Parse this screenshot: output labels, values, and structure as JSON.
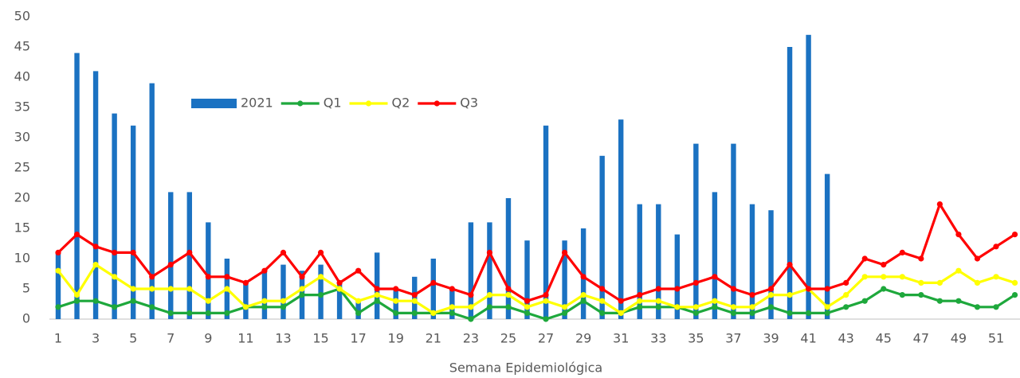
{
  "chart_data": {
    "type": "combo",
    "x_label": "Semana Epidemiológica",
    "categories": [
      1,
      null,
      3,
      null,
      5,
      null,
      7,
      null,
      9,
      null,
      11,
      null,
      13,
      null,
      15,
      null,
      17,
      null,
      19,
      null,
      21,
      null,
      23,
      null,
      25,
      null,
      27,
      null,
      29,
      null,
      31,
      null,
      33,
      null,
      35,
      null,
      37,
      null,
      39,
      null,
      41,
      null,
      43,
      null,
      45,
      null,
      47,
      null,
      49,
      null,
      51,
      null
    ],
    "series": [
      {
        "name": "2021",
        "type": "bar",
        "color": "#1b72c2",
        "values": [
          11,
          44,
          41,
          34,
          32,
          39,
          21,
          21,
          16,
          10,
          6,
          8,
          9,
          8,
          9,
          6,
          3,
          11,
          5,
          7,
          10,
          5,
          16,
          16,
          20,
          13,
          32,
          13,
          15,
          27,
          33,
          19,
          19,
          14,
          29,
          21,
          29,
          19,
          18,
          45,
          47,
          24,
          null,
          null,
          null,
          null,
          null,
          null,
          null,
          null,
          null,
          null
        ]
      },
      {
        "name": "Q1",
        "type": "line",
        "color": "#1ea83c",
        "values": [
          2,
          3,
          3,
          2,
          3,
          2,
          1,
          1,
          1,
          1,
          2,
          2,
          2,
          4,
          4,
          5,
          1,
          3,
          1,
          1,
          1,
          1,
          0,
          2,
          2,
          1,
          0,
          1,
          3,
          1,
          1,
          2,
          2,
          2,
          1,
          2,
          1,
          1,
          2,
          1,
          1,
          1,
          2,
          3,
          5,
          4,
          4,
          3,
          3,
          2,
          2,
          4
        ]
      },
      {
        "name": "Q2",
        "type": "line",
        "color": "#ffff00",
        "values": [
          8,
          4,
          9,
          7,
          5,
          5,
          5,
          5,
          3,
          5,
          2,
          3,
          3,
          5,
          7,
          5,
          3,
          4,
          3,
          3,
          1,
          2,
          2,
          4,
          4,
          2,
          3,
          2,
          4,
          3,
          1,
          3,
          3,
          2,
          2,
          3,
          2,
          2,
          4,
          4,
          5,
          2,
          4,
          7,
          7,
          7,
          6,
          6,
          8,
          6,
          7,
          6
        ]
      },
      {
        "name": "Q3",
        "type": "line",
        "color": "#ff0000",
        "values": [
          11,
          14,
          12,
          11,
          11,
          7,
          9,
          11,
          7,
          7,
          6,
          8,
          11,
          7,
          11,
          6,
          8,
          5,
          5,
          4,
          6,
          5,
          4,
          11,
          5,
          3,
          4,
          11,
          7,
          5,
          3,
          4,
          5,
          5,
          6,
          7,
          5,
          4,
          5,
          9,
          5,
          5,
          6,
          10,
          9,
          11,
          10,
          19,
          14,
          10,
          12,
          14
        ]
      }
    ],
    "ylim": [
      0,
      50
    ],
    "yticks": [
      0,
      5,
      10,
      15,
      20,
      25,
      30,
      35,
      40,
      45,
      50
    ],
    "grid": false
  }
}
